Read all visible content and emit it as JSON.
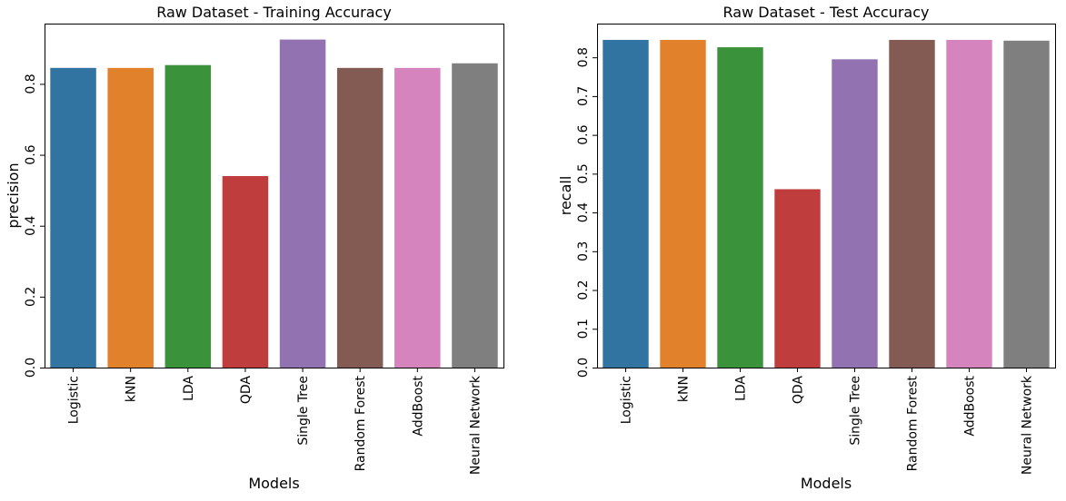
{
  "chart_data": [
    {
      "type": "bar",
      "title": "Raw Dataset - Training Accuracy",
      "xlabel": "Models",
      "ylabel": "precision",
      "categories": [
        "Logistic",
        "kNN",
        "LDA",
        "QDA",
        "Single Tree",
        "Random Forest",
        "AddBoost",
        "Neural Network"
      ],
      "values": [
        0.845,
        0.845,
        0.853,
        0.54,
        0.925,
        0.845,
        0.845,
        0.858
      ],
      "ylim": [
        0,
        0.97
      ],
      "yticks": [
        0.0,
        0.2,
        0.4,
        0.6,
        0.8
      ],
      "ytick_labels": [
        "0.0",
        "0.2",
        "0.4",
        "0.6",
        "0.8"
      ],
      "colors": [
        "#3274a1",
        "#e1812c",
        "#3a923a",
        "#c03d3e",
        "#9372b2",
        "#845b53",
        "#d684bd",
        "#7f7f7f"
      ],
      "grid": false
    },
    {
      "type": "bar",
      "title": "Raw Dataset - Test Accuracy",
      "xlabel": "Models",
      "ylabel": "recall",
      "categories": [
        "Logistic",
        "kNN",
        "LDA",
        "QDA",
        "Single Tree",
        "Random Forest",
        "AddBoost",
        "Neural Network"
      ],
      "values": [
        0.845,
        0.845,
        0.826,
        0.46,
        0.795,
        0.845,
        0.845,
        0.843
      ],
      "ylim": [
        0,
        0.887
      ],
      "yticks": [
        0.0,
        0.1,
        0.2,
        0.3,
        0.4,
        0.5,
        0.6,
        0.7,
        0.8
      ],
      "ytick_labels": [
        "0.0",
        "0.1",
        "0.2",
        "0.3",
        "0.4",
        "0.5",
        "0.6",
        "0.7",
        "0.8"
      ],
      "colors": [
        "#3274a1",
        "#e1812c",
        "#3a923a",
        "#c03d3e",
        "#9372b2",
        "#845b53",
        "#d684bd",
        "#7f7f7f"
      ],
      "grid": false
    }
  ]
}
